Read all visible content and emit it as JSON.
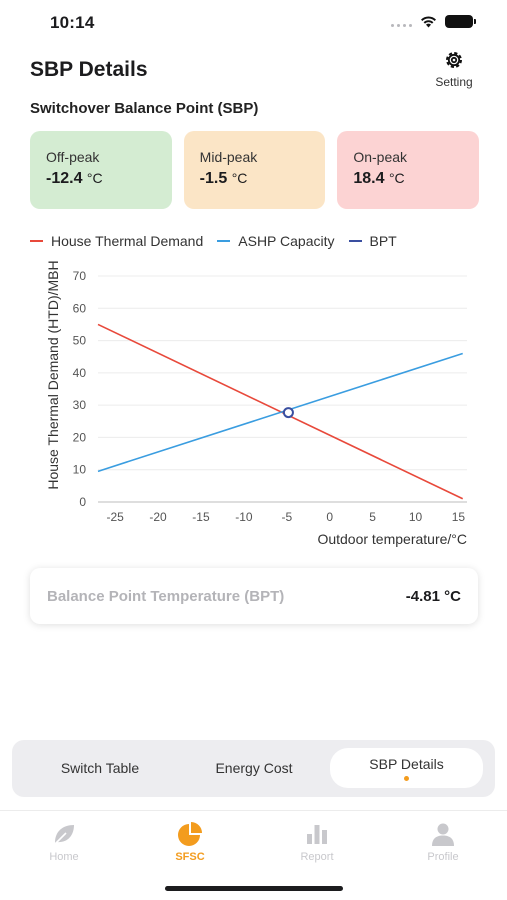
{
  "status_bar": {
    "time": "10:14",
    "battery_icon": "battery-icon",
    "wifi_icon": "wifi-icon"
  },
  "header": {
    "title": "SBP Details",
    "setting_label": "Setting",
    "setting_icon": "gear-icon"
  },
  "section": {
    "title": "Switchover Balance Point (SBP)"
  },
  "cards": [
    {
      "label": "Off-peak",
      "value": "-12.4",
      "unit": "°C",
      "bg": "#d4ecd2"
    },
    {
      "label": "Mid-peak",
      "value": "-1.5",
      "unit": "°C",
      "bg": "#fbe5c6"
    },
    {
      "label": "On-peak",
      "value": "18.4",
      "unit": "°C",
      "bg": "#fcd3d3"
    }
  ],
  "chart_data": {
    "type": "line",
    "xlabel": "Outdoor temperature/°C",
    "ylabel": "House Thermal Demand (HTD)/MBH",
    "xlim": [
      -27,
      16
    ],
    "ylim": [
      0,
      70
    ],
    "x_ticks": [
      -25,
      -20,
      -15,
      -10,
      -5,
      0,
      5,
      10,
      15
    ],
    "y_ticks": [
      0,
      10,
      20,
      30,
      40,
      50,
      60,
      70
    ],
    "grid": true,
    "legend_position": "top",
    "series": [
      {
        "name": "House Thermal Demand",
        "color": "#e8493b",
        "x": [
          -27,
          15.5
        ],
        "y": [
          55,
          1
        ]
      },
      {
        "name": "ASHP Capacity",
        "color": "#3a9de0",
        "x": [
          -27,
          15.5
        ],
        "y": [
          9.5,
          46
        ]
      },
      {
        "name": "BPT",
        "color": "#3a4fa0",
        "x": [
          -4.81
        ],
        "y": [
          27.7
        ]
      }
    ]
  },
  "bpt": {
    "label": "Balance Point Temperature (BPT)",
    "value": "-4.81 °C"
  },
  "segments": [
    {
      "label": "Switch Table",
      "active": false
    },
    {
      "label": "Energy Cost",
      "active": false
    },
    {
      "label": "SBP Details",
      "active": true
    }
  ],
  "tabs": [
    {
      "label": "Home",
      "icon": "leaf-icon",
      "active": false
    },
    {
      "label": "SFSC",
      "icon": "pie-chart-icon",
      "active": true
    },
    {
      "label": "Report",
      "icon": "bar-chart-icon",
      "active": false
    },
    {
      "label": "Profile",
      "icon": "person-icon",
      "active": false
    }
  ],
  "colors": {
    "accent": "#f39c1e",
    "inactive_tab": "#c8c8cc"
  }
}
